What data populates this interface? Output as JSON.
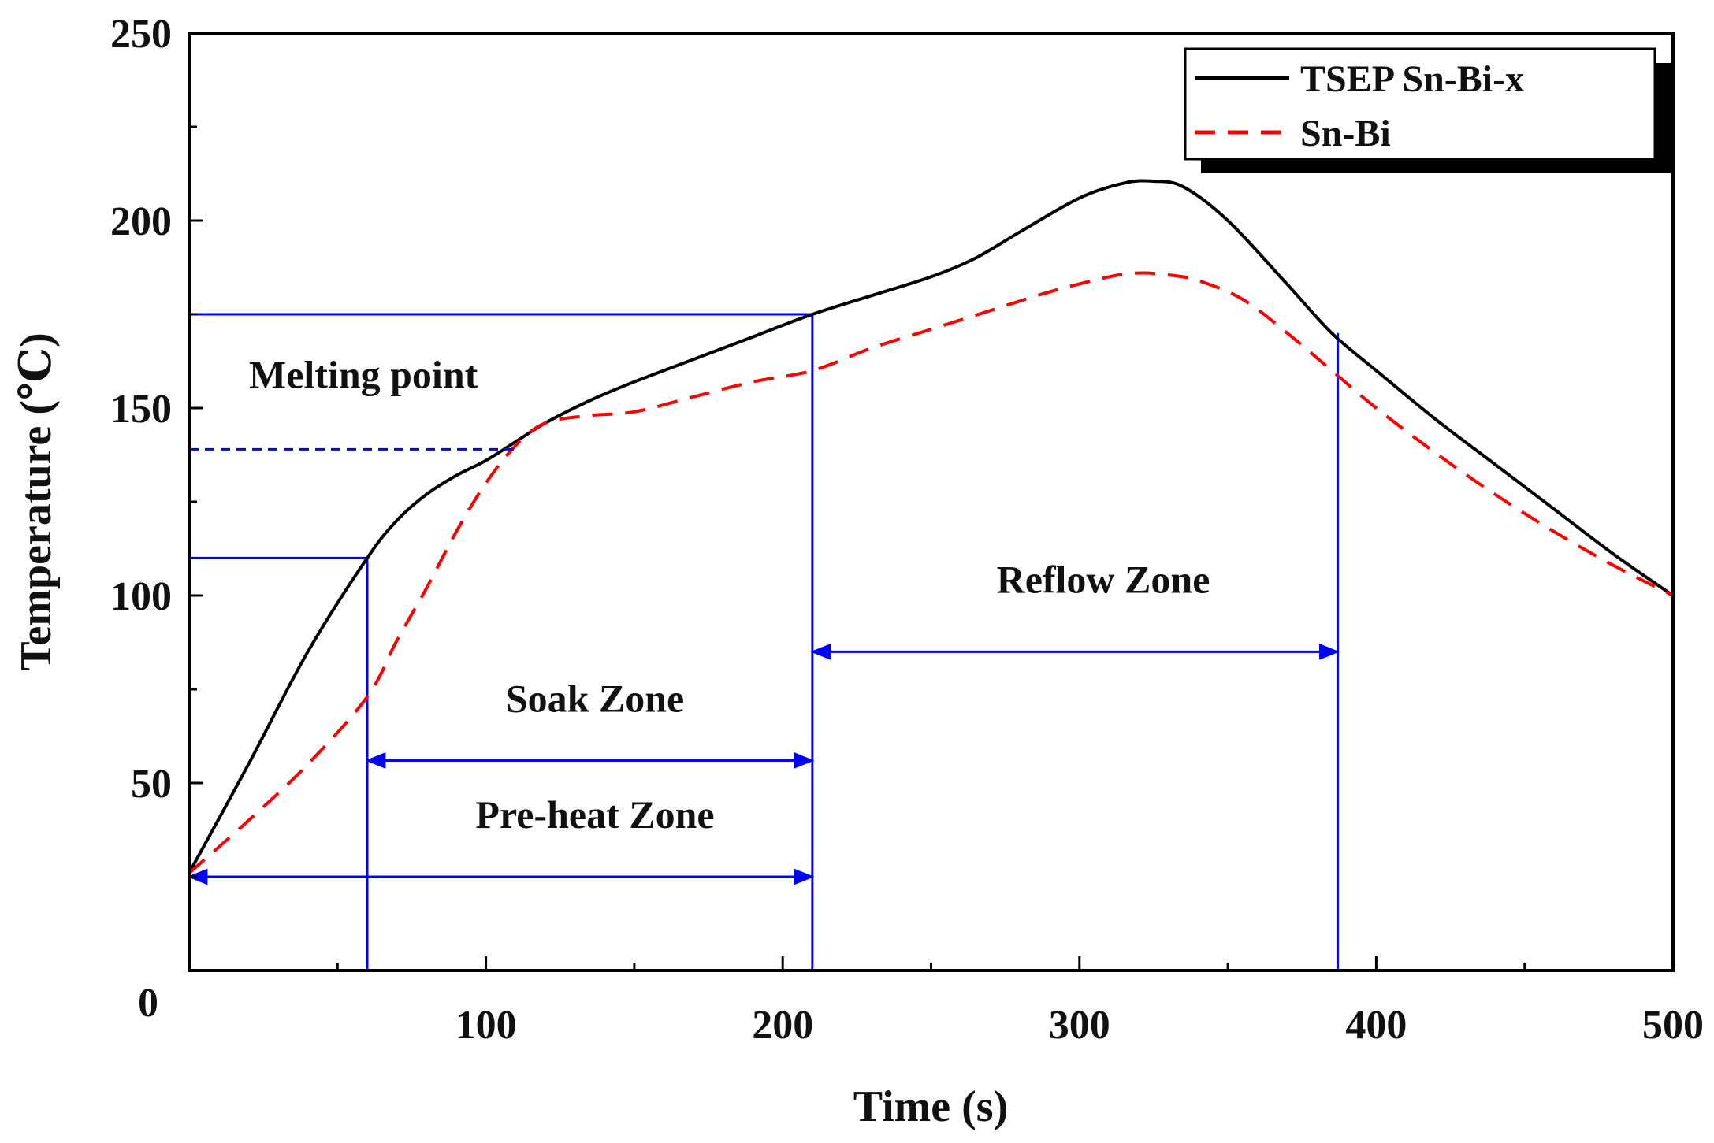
{
  "chart_data": {
    "type": "line",
    "title": "",
    "xlabel": "Time (s)",
    "ylabel": "Temperature (℃)",
    "xlim": [
      0,
      500
    ],
    "ylim": [
      0,
      250
    ],
    "x_ticks": [
      100,
      200,
      300,
      400,
      500
    ],
    "y_ticks": [
      0,
      50,
      100,
      150,
      200,
      250
    ],
    "x_tick_labels": [
      "100",
      "200",
      "300",
      "400",
      "500"
    ],
    "y_tick_labels": [
      "0",
      "50",
      "100",
      "150",
      "200",
      "250"
    ],
    "grid": false,
    "legend_position": "top-right",
    "colors": {
      "axis": "#000000",
      "series1": "#000000",
      "series2": "#ff0000",
      "annotation": "#0000ff"
    },
    "series": [
      {
        "name": "TSEP Sn-Bi-x",
        "style": "solid",
        "x": [
          0,
          20,
          40,
          60,
          70,
          80,
          90,
          100,
          110,
          120,
          135,
          150,
          170,
          190,
          210,
          230,
          250,
          265,
          280,
          300,
          315,
          325,
          335,
          350,
          370,
          385,
          400,
          420,
          440,
          460,
          480,
          500
        ],
        "y": [
          26,
          55,
          85,
          110,
          120,
          127,
          132,
          136,
          141,
          146,
          152,
          157,
          163,
          169,
          175,
          180,
          185,
          190,
          197,
          206,
          210,
          210.5,
          209,
          200,
          183,
          170,
          160,
          147,
          135,
          123,
          111,
          100
        ]
      },
      {
        "name": "Sn-Bi",
        "style": "dashed",
        "x": [
          0,
          20,
          40,
          60,
          70,
          80,
          90,
          100,
          110,
          120,
          135,
          150,
          170,
          190,
          210,
          230,
          250,
          270,
          290,
          310,
          320,
          330,
          340,
          355,
          370,
          385,
          400,
          420,
          440,
          460,
          480,
          500
        ],
        "y": [
          26,
          40,
          55,
          73,
          88,
          102,
          117,
          130,
          140,
          146,
          148,
          149,
          153,
          157,
          160,
          166,
          171,
          176,
          181,
          185,
          186,
          185.5,
          184,
          179,
          170,
          160,
          150,
          138,
          127,
          117,
          108,
          100
        ]
      }
    ],
    "annotations": [
      {
        "label": "Melting point",
        "kind": "dashed-hline",
        "y": 139,
        "x_end": 110
      },
      {
        "label": "Pre-heat Zone",
        "kind": "double-arrow",
        "from": 0,
        "to": 210,
        "y": 25
      },
      {
        "label": "Soak Zone",
        "kind": "double-arrow",
        "from": 60,
        "to": 210,
        "y": 56
      },
      {
        "label": "Reflow Zone",
        "kind": "double-arrow",
        "from": 210,
        "to": 387,
        "y": 85
      }
    ],
    "reference_lines": [
      {
        "kind": "hline",
        "y": 110,
        "x_end": 60
      },
      {
        "kind": "hline",
        "y": 175,
        "x_end": 210
      },
      {
        "kind": "vline",
        "x": 60,
        "y_end": 110
      },
      {
        "kind": "vline",
        "x": 210,
        "y_end": 175
      },
      {
        "kind": "vline",
        "x": 387,
        "y_end": 170
      }
    ]
  }
}
